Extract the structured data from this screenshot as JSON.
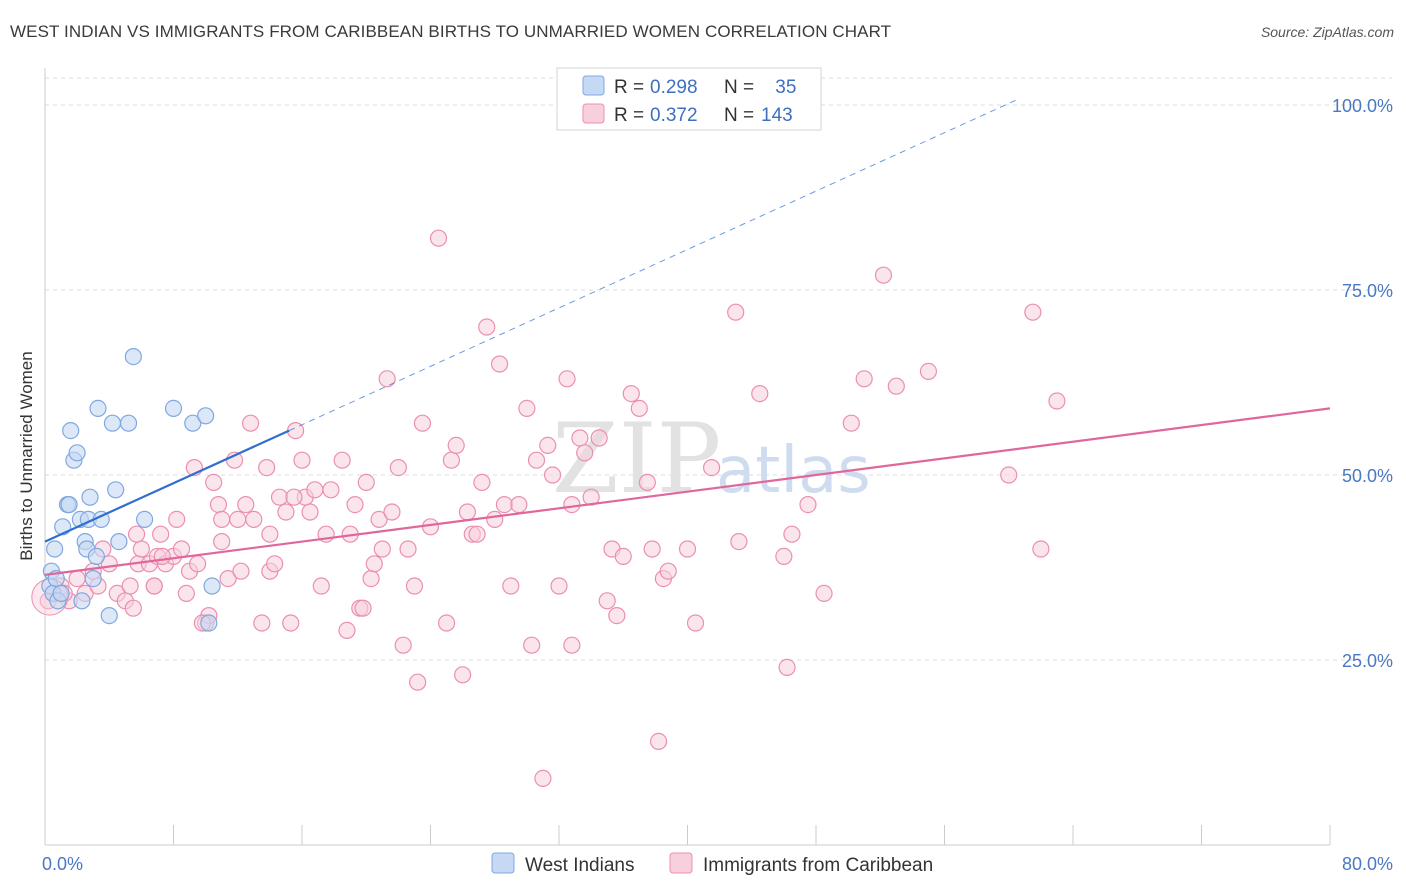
{
  "title": "WEST INDIAN VS IMMIGRANTS FROM CARIBBEAN BIRTHS TO UNMARRIED WOMEN CORRELATION CHART",
  "source": "Source: ZipAtlas.com",
  "watermark": {
    "zip": "ZIP",
    "atlas": "atlas"
  },
  "colors": {
    "blue": "#7fa8e0",
    "blue_fill": "#c5d8f4",
    "blue_line": "#2f6fd0",
    "pink": "#eb8fb0",
    "pink_fill": "#f8cfdc",
    "pink_line": "#e0679a",
    "grid": "#dddddd",
    "tick_text": "#4a78c2"
  },
  "legend": {
    "rows": [
      {
        "r_label": "R = ",
        "r_value": "0.298",
        "n_label": "N = ",
        "n_value": " 35"
      },
      {
        "r_label": "R = ",
        "r_value": "0.372",
        "n_label": "N = ",
        "n_value": "143"
      }
    ]
  },
  "chart_data": {
    "type": "scatter",
    "title": "WEST INDIAN VS IMMIGRANTS FROM CARIBBEAN BIRTHS TO UNMARRIED WOMEN CORRELATION CHART",
    "xlabel": "",
    "ylabel": "Births to Unmarried Women",
    "xlim": [
      0,
      80
    ],
    "ylim": [
      0,
      105
    ],
    "x_tick_labels": [
      "0.0%",
      "80.0%"
    ],
    "y_ticks": [
      25,
      50,
      75,
      100
    ],
    "y_tick_labels": [
      "25.0%",
      "50.0%",
      "75.0%",
      "100.0%"
    ],
    "grid": true,
    "legend_position": "top-center",
    "series": [
      {
        "name": "West Indians",
        "trend": {
          "x0": 0,
          "y0": 41,
          "x1": 15.2,
          "y1": 56,
          "dashed_to_x": 60.5
        },
        "points": [
          [
            0.3,
            35
          ],
          [
            0.4,
            37
          ],
          [
            0.5,
            34
          ],
          [
            0.6,
            40
          ],
          [
            0.7,
            36
          ],
          [
            0.8,
            33
          ],
          [
            1.0,
            34
          ],
          [
            1.1,
            43
          ],
          [
            1.4,
            46
          ],
          [
            1.5,
            46
          ],
          [
            1.6,
            56
          ],
          [
            1.8,
            52
          ],
          [
            2.0,
            53
          ],
          [
            2.2,
            44
          ],
          [
            2.3,
            33
          ],
          [
            2.5,
            41
          ],
          [
            2.6,
            40
          ],
          [
            2.7,
            44
          ],
          [
            2.8,
            47
          ],
          [
            3.0,
            36
          ],
          [
            3.2,
            39
          ],
          [
            3.5,
            44
          ],
          [
            4.0,
            31
          ],
          [
            4.2,
            57
          ],
          [
            4.4,
            48
          ],
          [
            4.6,
            41
          ],
          [
            5.2,
            57
          ],
          [
            5.5,
            66
          ],
          [
            6.2,
            44
          ],
          [
            8.0,
            59
          ],
          [
            9.2,
            57
          ],
          [
            10.0,
            58
          ],
          [
            10.2,
            30
          ],
          [
            10.4,
            35
          ],
          [
            3.3,
            59
          ]
        ]
      },
      {
        "name": "Immigrants from Caribbean",
        "trend": {
          "x0": 0,
          "y0": 36.5,
          "x1": 80,
          "y1": 59
        },
        "points": [
          [
            0.2,
            33
          ],
          [
            0.5,
            34
          ],
          [
            1.0,
            35
          ],
          [
            1.5,
            33
          ],
          [
            2.0,
            36
          ],
          [
            2.5,
            34
          ],
          [
            3.0,
            37
          ],
          [
            3.3,
            35
          ],
          [
            3.6,
            40
          ],
          [
            4.0,
            38
          ],
          [
            4.5,
            34
          ],
          [
            5.0,
            33
          ],
          [
            5.3,
            35
          ],
          [
            5.5,
            32
          ],
          [
            5.8,
            38
          ],
          [
            6.0,
            40
          ],
          [
            6.5,
            38
          ],
          [
            6.8,
            35
          ],
          [
            7.0,
            39
          ],
          [
            7.2,
            42
          ],
          [
            7.5,
            38
          ],
          [
            8.0,
            39
          ],
          [
            8.2,
            44
          ],
          [
            8.5,
            40
          ],
          [
            8.8,
            34
          ],
          [
            9.0,
            37
          ],
          [
            9.3,
            51
          ],
          [
            9.5,
            38
          ],
          [
            10.0,
            30
          ],
          [
            10.2,
            31
          ],
          [
            10.5,
            49
          ],
          [
            10.8,
            46
          ],
          [
            11.0,
            41
          ],
          [
            11.4,
            36
          ],
          [
            11.8,
            52
          ],
          [
            12.0,
            44
          ],
          [
            12.2,
            37
          ],
          [
            12.5,
            46
          ],
          [
            12.8,
            57
          ],
          [
            13.0,
            44
          ],
          [
            13.5,
            30
          ],
          [
            13.8,
            51
          ],
          [
            14.0,
            37
          ],
          [
            14.3,
            38
          ],
          [
            14.6,
            47
          ],
          [
            15.0,
            45
          ],
          [
            15.3,
            30
          ],
          [
            15.6,
            56
          ],
          [
            16.0,
            52
          ],
          [
            16.2,
            47
          ],
          [
            16.5,
            45
          ],
          [
            16.8,
            48
          ],
          [
            17.2,
            35
          ],
          [
            17.5,
            42
          ],
          [
            17.8,
            48
          ],
          [
            18.5,
            52
          ],
          [
            18.8,
            29
          ],
          [
            19.0,
            42
          ],
          [
            19.3,
            46
          ],
          [
            19.6,
            32
          ],
          [
            20.0,
            49
          ],
          [
            20.3,
            36
          ],
          [
            20.5,
            38
          ],
          [
            20.8,
            44
          ],
          [
            21.0,
            40
          ],
          [
            21.3,
            63
          ],
          [
            21.6,
            45
          ],
          [
            22.0,
            51
          ],
          [
            22.3,
            27
          ],
          [
            22.6,
            40
          ],
          [
            23.0,
            35
          ],
          [
            23.2,
            22
          ],
          [
            23.5,
            57
          ],
          [
            24.0,
            43
          ],
          [
            24.5,
            82
          ],
          [
            25.0,
            30
          ],
          [
            25.3,
            52
          ],
          [
            25.6,
            54
          ],
          [
            26.0,
            23
          ],
          [
            26.3,
            45
          ],
          [
            26.6,
            42
          ],
          [
            26.9,
            42
          ],
          [
            27.2,
            49
          ],
          [
            27.5,
            70
          ],
          [
            28.0,
            44
          ],
          [
            28.3,
            65
          ],
          [
            28.6,
            46
          ],
          [
            29.0,
            35
          ],
          [
            29.5,
            46
          ],
          [
            30.0,
            59
          ],
          [
            30.3,
            27
          ],
          [
            30.6,
            52
          ],
          [
            31.0,
            9
          ],
          [
            31.3,
            54
          ],
          [
            31.6,
            50
          ],
          [
            32.0,
            35
          ],
          [
            32.5,
            63
          ],
          [
            32.8,
            46
          ],
          [
            33.3,
            55
          ],
          [
            33.6,
            53
          ],
          [
            34.0,
            47
          ],
          [
            34.5,
            55
          ],
          [
            35.0,
            33
          ],
          [
            35.3,
            40
          ],
          [
            35.6,
            31
          ],
          [
            36.0,
            39
          ],
          [
            36.5,
            61
          ],
          [
            37.0,
            59
          ],
          [
            37.5,
            49
          ],
          [
            37.8,
            40
          ],
          [
            38.2,
            14
          ],
          [
            38.5,
            36
          ],
          [
            38.8,
            37
          ],
          [
            40.0,
            40
          ],
          [
            40.5,
            30
          ],
          [
            41.5,
            51
          ],
          [
            43.0,
            72
          ],
          [
            43.2,
            41
          ],
          [
            44.5,
            61
          ],
          [
            46.0,
            39
          ],
          [
            46.2,
            24
          ],
          [
            46.5,
            42
          ],
          [
            47.5,
            46
          ],
          [
            48.5,
            34
          ],
          [
            50.2,
            57
          ],
          [
            51.0,
            63
          ],
          [
            52.2,
            77
          ],
          [
            53.0,
            62
          ],
          [
            55.0,
            64
          ],
          [
            60.0,
            50
          ],
          [
            61.5,
            72
          ],
          [
            62.0,
            40
          ],
          [
            63.0,
            60
          ],
          [
            11.0,
            44
          ],
          [
            15.5,
            47
          ],
          [
            6.8,
            35
          ],
          [
            9.8,
            30
          ],
          [
            5.7,
            42
          ],
          [
            19.8,
            32
          ],
          [
            32.8,
            27
          ],
          [
            14.0,
            42
          ],
          [
            7.3,
            39
          ],
          [
            1.2,
            34
          ]
        ]
      }
    ]
  },
  "bottom_legend": [
    {
      "label": "West Indians"
    },
    {
      "label": "Immigrants from Caribbean"
    }
  ]
}
